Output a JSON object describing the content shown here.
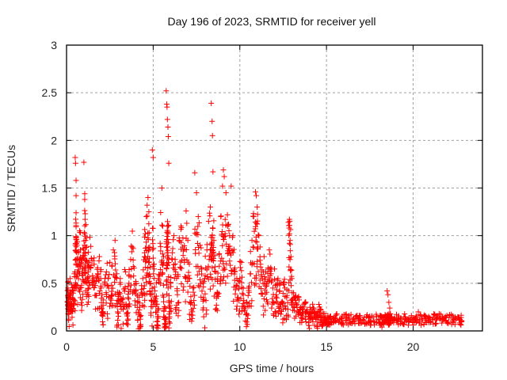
{
  "chart_data": {
    "type": "scatter",
    "title": "Day 196 of 2023, SRMTID for receiver yell",
    "xlabel": "GPS time / hours",
    "ylabel": "SRMTID / TECUs",
    "xlim": [
      0,
      24
    ],
    "ylim": [
      0,
      3
    ],
    "xticks": [
      0,
      5,
      10,
      15,
      20
    ],
    "xtick_labels": [
      "0",
      "5",
      "10",
      "15",
      "20"
    ],
    "yticks": [
      0,
      0.5,
      1,
      1.5,
      2,
      2.5,
      3
    ],
    "ytick_labels": [
      "0",
      "0.5",
      "1",
      "1.5",
      "2",
      "2.5",
      "3"
    ],
    "grid": true,
    "marker": "+",
    "series": [
      {
        "name": "SRMTID",
        "color": "#ff0000",
        "points": [
          [
            0.05,
            0.3
          ],
          [
            0.08,
            0.45
          ],
          [
            0.1,
            0.52
          ],
          [
            0.12,
            0.25
          ],
          [
            0.15,
            0.38
          ],
          [
            0.2,
            0.55
          ],
          [
            0.25,
            0.33
          ],
          [
            0.3,
            0.28
          ],
          [
            0.35,
            0.42
          ],
          [
            0.4,
            0.31
          ],
          [
            0.45,
            0.6
          ],
          [
            0.5,
            1.82
          ],
          [
            0.52,
            1.76
          ],
          [
            0.55,
            1.58
          ],
          [
            0.55,
            1.42
          ],
          [
            0.55,
            1.24
          ],
          [
            0.6,
            0.9
          ],
          [
            0.62,
            0.75
          ],
          [
            0.7,
            0.68
          ],
          [
            0.75,
            1.05
          ],
          [
            0.8,
            0.85
          ],
          [
            0.85,
            0.72
          ],
          [
            0.9,
            0.62
          ],
          [
            0.95,
            0.78
          ],
          [
            1.0,
            1.77
          ],
          [
            1.05,
            1.44
          ],
          [
            1.05,
            1.38
          ],
          [
            1.08,
            1.23
          ],
          [
            1.1,
            0.95
          ],
          [
            1.15,
            0.88
          ],
          [
            1.2,
            0.55
          ],
          [
            1.25,
            0.62
          ],
          [
            1.3,
            0.72
          ],
          [
            1.4,
            0.66
          ],
          [
            1.5,
            0.58
          ],
          [
            1.6,
            0.7
          ],
          [
            1.7,
            0.52
          ],
          [
            1.8,
            0.6
          ],
          [
            1.9,
            0.78
          ],
          [
            2.0,
            0.45
          ],
          [
            2.05,
            0.38
          ],
          [
            2.1,
            0.18
          ],
          [
            2.2,
            0.5
          ],
          [
            2.3,
            0.62
          ],
          [
            2.4,
            0.55
          ],
          [
            2.5,
            0.72
          ],
          [
            2.6,
            0.48
          ],
          [
            2.7,
            0.85
          ],
          [
            2.8,
            0.95
          ],
          [
            2.9,
            0.6
          ],
          [
            2.95,
            0.2
          ],
          [
            3.0,
            0.38
          ],
          [
            3.1,
            0.55
          ],
          [
            3.2,
            0.3
          ],
          [
            3.3,
            0.44
          ],
          [
            3.4,
            0.62
          ],
          [
            3.5,
            0.18
          ],
          [
            3.55,
            0.35
          ],
          [
            3.6,
            0.5
          ],
          [
            3.7,
            0.75
          ],
          [
            3.8,
            0.88
          ],
          [
            3.9,
            0.66
          ],
          [
            4.0,
            0.5
          ],
          [
            4.1,
            0.3
          ],
          [
            4.2,
            0.22
          ],
          [
            4.25,
            0.15
          ],
          [
            4.3,
            0.4
          ],
          [
            4.4,
            0.55
          ],
          [
            4.5,
            0.82
          ],
          [
            4.55,
            1.02
          ],
          [
            4.6,
            1.2
          ],
          [
            4.65,
            1.32
          ],
          [
            4.7,
            1.4
          ],
          [
            4.75,
            1.25
          ],
          [
            4.8,
            0.88
          ],
          [
            4.85,
            0.5
          ],
          [
            4.9,
            0.32
          ],
          [
            4.95,
            1.9
          ],
          [
            5.0,
            1.82
          ],
          [
            5.05,
            0.65
          ],
          [
            5.1,
            0.42
          ],
          [
            5.2,
            0.28
          ],
          [
            5.25,
            0.15
          ],
          [
            5.3,
            0.55
          ],
          [
            5.4,
            0.92
          ],
          [
            5.5,
            1.5
          ],
          [
            5.55,
            1.1
          ],
          [
            5.6,
            0.78
          ],
          [
            5.65,
            0.12
          ],
          [
            5.7,
            0.08
          ],
          [
            5.75,
            2.52
          ],
          [
            5.78,
            2.38
          ],
          [
            5.8,
            2.35
          ],
          [
            5.82,
            2.22
          ],
          [
            5.85,
            2.14
          ],
          [
            5.87,
            2.04
          ],
          [
            5.9,
            1.76
          ],
          [
            5.92,
            0.25
          ],
          [
            6.0,
            0.5
          ],
          [
            6.1,
            0.75
          ],
          [
            6.2,
            1.0
          ],
          [
            6.3,
            0.62
          ],
          [
            6.4,
            0.38
          ],
          [
            6.5,
            0.95
          ],
          [
            6.6,
            1.1
          ],
          [
            6.7,
            0.88
          ],
          [
            6.8,
            0.72
          ],
          [
            6.9,
            1.26
          ],
          [
            7.0,
            0.95
          ],
          [
            7.1,
            0.55
          ],
          [
            7.2,
            0.3
          ],
          [
            7.3,
            0.45
          ],
          [
            7.4,
            1.66
          ],
          [
            7.5,
            1.45
          ],
          [
            7.6,
            1.2
          ],
          [
            7.7,
            0.9
          ],
          [
            7.8,
            0.65
          ],
          [
            7.9,
            0.35
          ],
          [
            8.0,
            0.58
          ],
          [
            8.1,
            0.85
          ],
          [
            8.2,
            1.15
          ],
          [
            8.3,
            1.3
          ],
          [
            8.35,
            2.39
          ],
          [
            8.4,
            2.2
          ],
          [
            8.42,
            2.05
          ],
          [
            8.45,
            1.67
          ],
          [
            8.5,
            0.95
          ],
          [
            8.6,
            0.62
          ],
          [
            8.7,
            0.4
          ],
          [
            8.8,
            0.8
          ],
          [
            8.9,
            1.2
          ],
          [
            9.0,
            1.52
          ],
          [
            9.05,
            1.69
          ],
          [
            9.1,
            1.62
          ],
          [
            9.2,
            1.45
          ],
          [
            9.3,
            1.1
          ],
          [
            9.4,
            0.85
          ],
          [
            9.5,
            1.52
          ],
          [
            9.6,
            1.0
          ],
          [
            9.7,
            0.62
          ],
          [
            9.8,
            0.48
          ],
          [
            9.9,
            0.35
          ],
          [
            10.0,
            0.55
          ],
          [
            10.1,
            0.72
          ],
          [
            10.2,
            0.38
          ],
          [
            10.3,
            0.25
          ],
          [
            10.4,
            0.18
          ],
          [
            10.5,
            0.45
          ],
          [
            10.6,
            0.6
          ],
          [
            10.7,
            0.95
          ],
          [
            10.8,
            1.2
          ],
          [
            10.9,
            1.46
          ],
          [
            10.95,
            1.42
          ],
          [
            11.0,
            1.3
          ],
          [
            11.1,
            1.0
          ],
          [
            11.2,
            0.7
          ],
          [
            11.3,
            0.55
          ],
          [
            11.4,
            0.78
          ],
          [
            11.5,
            0.62
          ],
          [
            11.6,
            0.52
          ],
          [
            11.7,
            0.85
          ],
          [
            11.8,
            0.6
          ],
          [
            11.9,
            0.45
          ],
          [
            12.0,
            0.65
          ],
          [
            12.1,
            0.38
          ],
          [
            12.2,
            0.55
          ],
          [
            12.3,
            0.42
          ],
          [
            12.4,
            0.3
          ],
          [
            12.5,
            0.5
          ],
          [
            12.6,
            0.45
          ],
          [
            12.7,
            0.35
          ],
          [
            12.8,
            1.14
          ],
          [
            12.85,
            1.08
          ],
          [
            12.9,
            0.95
          ],
          [
            12.95,
            0.78
          ],
          [
            13.0,
            0.55
          ],
          [
            13.1,
            0.4
          ],
          [
            13.2,
            0.32
          ],
          [
            13.3,
            0.28
          ],
          [
            13.4,
            0.35
          ],
          [
            13.5,
            0.22
          ],
          [
            13.6,
            0.18
          ],
          [
            13.7,
            0.25
          ],
          [
            13.8,
            0.3
          ],
          [
            13.9,
            0.2
          ],
          [
            14.0,
            0.15
          ],
          [
            14.1,
            0.22
          ],
          [
            14.2,
            0.28
          ],
          [
            14.3,
            0.18
          ],
          [
            14.4,
            0.12
          ],
          [
            14.5,
            0.2
          ],
          [
            14.6,
            0.25
          ],
          [
            14.7,
            0.15
          ],
          [
            14.8,
            0.1
          ],
          [
            14.9,
            0.18
          ],
          [
            15.0,
            0.12
          ],
          [
            15.1,
            0.08
          ],
          [
            15.2,
            0.15
          ],
          [
            15.3,
            0.1
          ],
          [
            15.5,
            0.13
          ],
          [
            15.7,
            0.09
          ],
          [
            15.9,
            0.14
          ],
          [
            16.1,
            0.11
          ],
          [
            16.3,
            0.16
          ],
          [
            16.5,
            0.1
          ],
          [
            16.7,
            0.13
          ],
          [
            16.9,
            0.08
          ],
          [
            17.1,
            0.12
          ],
          [
            17.3,
            0.15
          ],
          [
            17.5,
            0.1
          ],
          [
            17.7,
            0.14
          ],
          [
            17.9,
            0.09
          ],
          [
            18.1,
            0.06
          ],
          [
            18.2,
            0.04
          ],
          [
            18.3,
            0.08
          ],
          [
            18.4,
            0.1
          ],
          [
            18.5,
            0.42
          ],
          [
            18.55,
            0.38
          ],
          [
            18.6,
            0.3
          ],
          [
            18.65,
            0.24
          ],
          [
            18.7,
            0.15
          ],
          [
            18.9,
            0.12
          ],
          [
            19.1,
            0.1
          ],
          [
            19.3,
            0.13
          ],
          [
            19.5,
            0.09
          ],
          [
            19.7,
            0.12
          ],
          [
            19.9,
            0.16
          ],
          [
            20.1,
            0.1
          ],
          [
            20.3,
            0.2
          ],
          [
            20.5,
            0.13
          ],
          [
            20.7,
            0.09
          ],
          [
            20.9,
            0.15
          ],
          [
            21.1,
            0.12
          ],
          [
            21.3,
            0.08
          ],
          [
            21.5,
            0.18
          ],
          [
            21.7,
            0.11
          ],
          [
            21.9,
            0.14
          ],
          [
            22.1,
            0.17
          ],
          [
            22.3,
            0.1
          ],
          [
            22.5,
            0.13
          ],
          [
            22.7,
            0.12
          ],
          [
            22.8,
            0.1
          ]
        ]
      }
    ]
  }
}
